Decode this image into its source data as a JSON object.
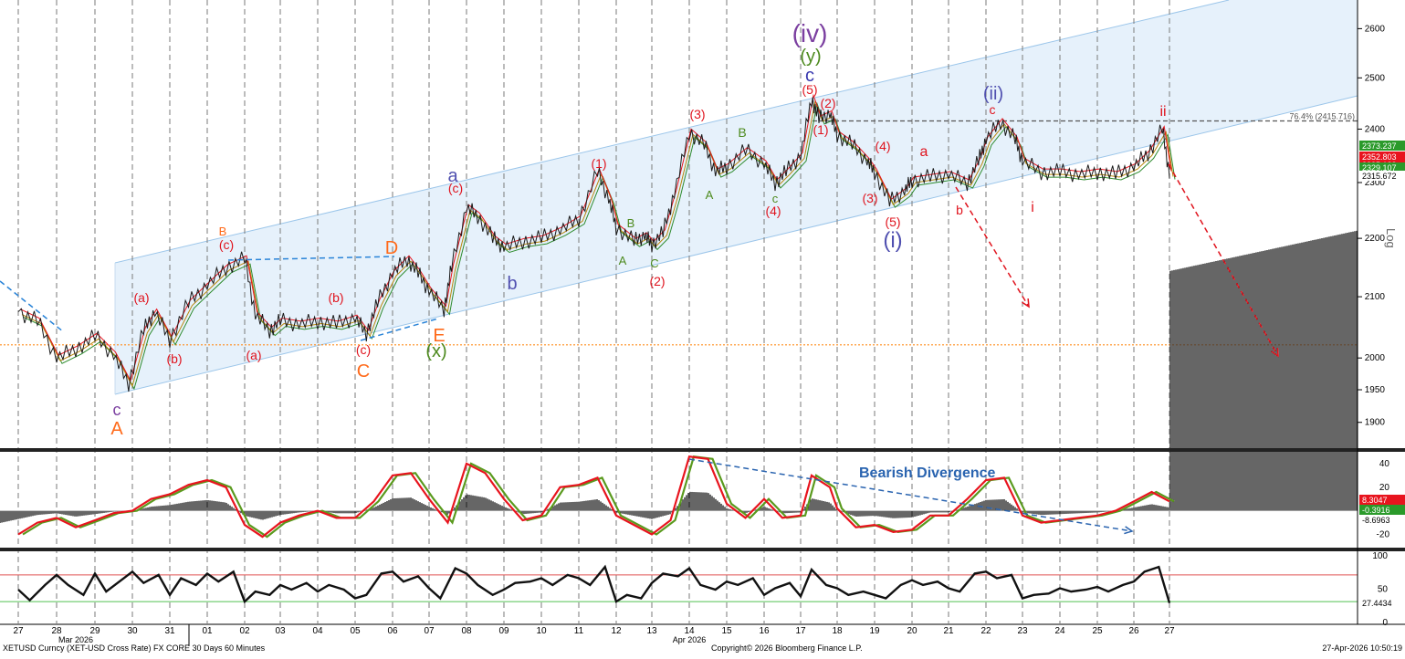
{
  "chart_data": {
    "type": "line",
    "title": "",
    "footer": {
      "left": "XETUSD Curncy (XET-USD Cross Rate) FX CORE 30 Days 60 Minutes",
      "center": "Copyright© 2026 Bloomberg Finance L.P.",
      "right": "27-Apr-2026 10:50:19"
    },
    "scale_label": "Log",
    "x_ticks": [
      "27",
      "28",
      "29",
      "30",
      "31",
      "01",
      "02",
      "03",
      "04",
      "05",
      "06",
      "07",
      "08",
      "09",
      "10",
      "11",
      "12",
      "13",
      "14",
      "15",
      "16",
      "17",
      "18",
      "19",
      "20",
      "21",
      "22",
      "23",
      "24",
      "25",
      "26",
      "27"
    ],
    "month_labels": [
      {
        "text": "Mar 2026",
        "at": "28"
      },
      {
        "text": "Apr 2026",
        "at": "14"
      }
    ],
    "price_panel": {
      "y_ticks": [
        1900,
        1950,
        2000,
        2100,
        2200,
        2300,
        2400,
        2500,
        2600
      ],
      "ylim": [
        1860,
        2660
      ],
      "log_scale": true,
      "price_path": [
        [
          "27",
          2075
        ],
        [
          "27.5",
          2060
        ],
        [
          "28",
          2000
        ],
        [
          "28.5",
          2015
        ],
        [
          "29",
          2035
        ],
        [
          "29.5",
          2005
        ],
        [
          "29.9",
          1960
        ],
        [
          "30.3",
          2045
        ],
        [
          "30.6",
          2075
        ],
        [
          "31",
          2030
        ],
        [
          "31.5",
          2090
        ],
        [
          "01",
          2120
        ],
        [
          "01.5",
          2150
        ],
        [
          "02",
          2165
        ],
        [
          "02.3",
          2070
        ],
        [
          "02.7",
          2045
        ],
        [
          "03",
          2060
        ],
        [
          "03.5",
          2055
        ],
        [
          "04",
          2060
        ],
        [
          "04.5",
          2055
        ],
        [
          "05",
          2065
        ],
        [
          "05.3",
          2040
        ],
        [
          "05.6",
          2090
        ],
        [
          "06",
          2140
        ],
        [
          "06.4",
          2165
        ],
        [
          "06.7",
          2140
        ],
        [
          "07",
          2110
        ],
        [
          "07.4",
          2080
        ],
        [
          "07.6",
          2150
        ],
        [
          "08",
          2255
        ],
        [
          "08.3",
          2240
        ],
        [
          "08.7",
          2200
        ],
        [
          "09",
          2185
        ],
        [
          "09.5",
          2195
        ],
        [
          "10",
          2200
        ],
        [
          "10.5",
          2215
        ],
        [
          "11",
          2235
        ],
        [
          "11.5",
          2320
        ],
        [
          "11.8",
          2270
        ],
        [
          "12",
          2220
        ],
        [
          "12.5",
          2195
        ],
        [
          "12.8",
          2205
        ],
        [
          "13",
          2190
        ],
        [
          "13.3",
          2210
        ],
        [
          "13.6",
          2280
        ],
        [
          "14",
          2395
        ],
        [
          "14.4",
          2370
        ],
        [
          "14.7",
          2320
        ],
        [
          "15",
          2330
        ],
        [
          "15.5",
          2360
        ],
        [
          "16",
          2335
        ],
        [
          "16.3",
          2300
        ],
        [
          "16.6",
          2320
        ],
        [
          "17",
          2350
        ],
        [
          "17.3",
          2460
        ],
        [
          "17.5",
          2420
        ],
        [
          "17.8",
          2430
        ],
        [
          "18",
          2390
        ],
        [
          "18.4",
          2370
        ],
        [
          "18.8",
          2340
        ],
        [
          "19",
          2320
        ],
        [
          "19.4",
          2265
        ],
        [
          "19.8",
          2285
        ],
        [
          "20",
          2305
        ],
        [
          "20.5",
          2310
        ],
        [
          "21",
          2315
        ],
        [
          "21.5",
          2300
        ],
        [
          "21.8",
          2340
        ],
        [
          "22",
          2380
        ],
        [
          "22.4",
          2415
        ],
        [
          "22.8",
          2380
        ],
        [
          "23",
          2340
        ],
        [
          "23.5",
          2320
        ],
        [
          "24",
          2320
        ],
        [
          "24.5",
          2315
        ],
        [
          "25",
          2320
        ],
        [
          "25.5",
          2315
        ],
        [
          "26",
          2330
        ],
        [
          "26.4",
          2355
        ],
        [
          "26.8",
          2400
        ],
        [
          "27",
          2316
        ]
      ],
      "series": [
        {
          "name": "Price",
          "last": "2315.672",
          "color": "#1a1a1a"
        },
        {
          "name": "MA fast",
          "last": "2352.803",
          "color": "#e8141e"
        },
        {
          "name": "MA slow",
          "last": "2373.237",
          "color": "#2e8b2e"
        },
        {
          "name": "MA",
          "last": "2335.183",
          "color": "#b8860b"
        },
        {
          "name": "MA",
          "last": "2329.107",
          "color": "#3aa83a"
        }
      ],
      "horizontal_levels": [
        {
          "value": 2021,
          "style": "dotted",
          "color": "#ff8c1a"
        },
        {
          "value": 2415.716,
          "style": "dashed",
          "color": "#555555",
          "label": "76.4% (2415.716)"
        }
      ],
      "wave_labels": [
        {
          "text": "(iv)",
          "color": "#7b3fa0"
        },
        {
          "text": "(y)",
          "color": "#4d8a1e"
        },
        {
          "text": "c",
          "color": "#3b3bb0"
        },
        {
          "text": "(5)",
          "color": "#e0141e"
        },
        {
          "text": "(2)",
          "color": "#e0141e"
        },
        {
          "text": "(1)",
          "color": "#e0141e"
        },
        {
          "text": "(3)",
          "color": "#e0141e"
        },
        {
          "text": "B",
          "color": "#4d8a1e"
        },
        {
          "text": "A",
          "color": "#4d8a1e"
        },
        {
          "text": "c",
          "color": "#4d8a1e"
        },
        {
          "text": "(4)",
          "color": "#e0141e"
        },
        {
          "text": "(4)",
          "color": "#e0141e"
        },
        {
          "text": "(3)",
          "color": "#e0141e"
        },
        {
          "text": "a",
          "color": "#e0141e"
        },
        {
          "text": "(5)",
          "color": "#e0141e"
        },
        {
          "text": "(i)",
          "color": "#5050b0"
        },
        {
          "text": "b",
          "color": "#e0141e"
        },
        {
          "text": "(ii)",
          "color": "#5050b0"
        },
        {
          "text": "c",
          "color": "#e0141e"
        },
        {
          "text": "i",
          "color": "#e0141e"
        },
        {
          "text": "ii",
          "color": "#e0141e"
        },
        {
          "text": "a",
          "color": "#5050b0"
        },
        {
          "text": "(c)",
          "color": "#e0141e"
        },
        {
          "text": "(1)",
          "color": "#e0141e"
        },
        {
          "text": "B",
          "color": "#4d8a1e"
        },
        {
          "text": "A",
          "color": "#4d8a1e"
        },
        {
          "text": "C",
          "color": "#4d8a1e"
        },
        {
          "text": "(2)",
          "color": "#e0141e"
        },
        {
          "text": "b",
          "color": "#5050b0"
        },
        {
          "text": "B",
          "color": "#ff6a1a"
        },
        {
          "text": "(c)",
          "color": "#e0141e"
        },
        {
          "text": "(a)",
          "color": "#e0141e"
        },
        {
          "text": "(b)",
          "color": "#e0141e"
        },
        {
          "text": "(a)",
          "color": "#e0141e"
        },
        {
          "text": "(b)",
          "color": "#e0141e"
        },
        {
          "text": "(c)",
          "color": "#e0141e"
        },
        {
          "text": "C",
          "color": "#ff6a1a"
        },
        {
          "text": "D",
          "color": "#ff6a1a"
        },
        {
          "text": "E",
          "color": "#ff6a1a"
        },
        {
          "text": "(x)",
          "color": "#4d8a1e"
        },
        {
          "text": "c",
          "color": "#7b3fa0"
        },
        {
          "text": "A",
          "color": "#ff6a1a"
        }
      ]
    },
    "macd_panel": {
      "y_ticks": [
        40,
        20,
        -20
      ],
      "ylim": [
        -32,
        50
      ],
      "values": [
        {
          "label": "8.3047",
          "color": "#e8141e"
        },
        {
          "label": "-0.3916",
          "color": "#2e8b2e"
        },
        {
          "label": "-8.6963",
          "color": "#ffffff"
        }
      ],
      "annotation": "Bearish Divergence",
      "osc_path": [
        [
          "27",
          -20
        ],
        [
          "27.5",
          -10
        ],
        [
          "28",
          -6
        ],
        [
          "28.5",
          -14
        ],
        [
          "29",
          -8
        ],
        [
          "29.5",
          -2
        ],
        [
          "30",
          0
        ],
        [
          "30.5",
          10
        ],
        [
          "31",
          14
        ],
        [
          "31.5",
          22
        ],
        [
          "01",
          26
        ],
        [
          "01.5",
          20
        ],
        [
          "02",
          -12
        ],
        [
          "02.5",
          -22
        ],
        [
          "03",
          -10
        ],
        [
          "03.5",
          -4
        ],
        [
          "04",
          0
        ],
        [
          "04.5",
          -6
        ],
        [
          "05",
          -6
        ],
        [
          "05.5",
          8
        ],
        [
          "06",
          30
        ],
        [
          "06.5",
          32
        ],
        [
          "07",
          10
        ],
        [
          "07.5",
          -10
        ],
        [
          "08",
          40
        ],
        [
          "08.5",
          32
        ],
        [
          "09",
          10
        ],
        [
          "09.5",
          -8
        ],
        [
          "10",
          -4
        ],
        [
          "10.5",
          20
        ],
        [
          "11",
          22
        ],
        [
          "11.5",
          28
        ],
        [
          "12",
          -4
        ],
        [
          "12.5",
          -12
        ],
        [
          "13",
          -20
        ],
        [
          "13.5",
          -8
        ],
        [
          "14",
          46
        ],
        [
          "14.5",
          44
        ],
        [
          "15",
          6
        ],
        [
          "15.5",
          -6
        ],
        [
          "16",
          10
        ],
        [
          "16.5",
          -6
        ],
        [
          "17",
          -4
        ],
        [
          "17.3",
          30
        ],
        [
          "17.8",
          20
        ],
        [
          "18",
          2
        ],
        [
          "18.5",
          -14
        ],
        [
          "19",
          -12
        ],
        [
          "19.5",
          -18
        ],
        [
          "20",
          -16
        ],
        [
          "20.5",
          -4
        ],
        [
          "21",
          -4
        ],
        [
          "21.5",
          10
        ],
        [
          "22",
          26
        ],
        [
          "22.5",
          28
        ],
        [
          "23",
          -4
        ],
        [
          "23.5",
          -10
        ],
        [
          "24",
          -8
        ],
        [
          "24.5",
          -6
        ],
        [
          "25",
          -4
        ],
        [
          "25.5",
          0
        ],
        [
          "26",
          8
        ],
        [
          "26.5",
          16
        ],
        [
          "27",
          8
        ]
      ]
    },
    "rsi_panel": {
      "y_ticks": [
        100,
        50,
        0
      ],
      "ylim": [
        0,
        100
      ],
      "levels": [
        70,
        30
      ],
      "last": "27.4434",
      "rsi_path": [
        [
          "27",
          48
        ],
        [
          "27.3",
          32
        ],
        [
          "27.7",
          55
        ],
        [
          "28",
          70
        ],
        [
          "28.3",
          55
        ],
        [
          "28.7",
          40
        ],
        [
          "29",
          72
        ],
        [
          "29.3",
          45
        ],
        [
          "29.7",
          62
        ],
        [
          "30",
          75
        ],
        [
          "30.3",
          58
        ],
        [
          "30.7",
          70
        ],
        [
          "31",
          40
        ],
        [
          "31.3",
          65
        ],
        [
          "31.7",
          55
        ],
        [
          "01",
          72
        ],
        [
          "01.3",
          60
        ],
        [
          "01.7",
          75
        ],
        [
          "02",
          30
        ],
        [
          "02.3",
          45
        ],
        [
          "02.7",
          40
        ],
        [
          "03",
          55
        ],
        [
          "03.3",
          48
        ],
        [
          "03.7",
          58
        ],
        [
          "04",
          45
        ],
        [
          "04.3",
          55
        ],
        [
          "04.7",
          48
        ],
        [
          "05",
          35
        ],
        [
          "05.3",
          40
        ],
        [
          "05.7",
          72
        ],
        [
          "06",
          75
        ],
        [
          "06.3",
          60
        ],
        [
          "06.7",
          68
        ],
        [
          "07",
          50
        ],
        [
          "07.3",
          35
        ],
        [
          "07.7",
          80
        ],
        [
          "08",
          72
        ],
        [
          "08.3",
          55
        ],
        [
          "08.7",
          40
        ],
        [
          "09",
          48
        ],
        [
          "09.3",
          58
        ],
        [
          "09.7",
          60
        ],
        [
          "10",
          65
        ],
        [
          "10.3",
          55
        ],
        [
          "10.7",
          70
        ],
        [
          "11",
          65
        ],
        [
          "11.3",
          55
        ],
        [
          "11.7",
          82
        ],
        [
          "12",
          30
        ],
        [
          "12.3",
          40
        ],
        [
          "12.7",
          35
        ],
        [
          "13",
          58
        ],
        [
          "13.3",
          72
        ],
        [
          "13.7",
          68
        ],
        [
          "14",
          80
        ],
        [
          "14.3",
          55
        ],
        [
          "14.7",
          48
        ],
        [
          "15",
          60
        ],
        [
          "15.3",
          55
        ],
        [
          "15.7",
          65
        ],
        [
          "16",
          40
        ],
        [
          "16.3",
          50
        ],
        [
          "16.7",
          58
        ],
        [
          "17",
          38
        ],
        [
          "17.3",
          78
        ],
        [
          "17.7",
          55
        ],
        [
          "18",
          50
        ],
        [
          "18.3",
          40
        ],
        [
          "18.7",
          45
        ],
        [
          "19",
          40
        ],
        [
          "19.3",
          35
        ],
        [
          "19.7",
          55
        ],
        [
          "20",
          62
        ],
        [
          "20.3",
          55
        ],
        [
          "20.7",
          60
        ],
        [
          "21",
          50
        ],
        [
          "21.3",
          45
        ],
        [
          "21.7",
          72
        ],
        [
          "22",
          75
        ],
        [
          "22.3",
          65
        ],
        [
          "22.7",
          70
        ],
        [
          "23",
          35
        ],
        [
          "23.3",
          40
        ],
        [
          "23.7",
          42
        ],
        [
          "24",
          50
        ],
        [
          "24.3",
          45
        ],
        [
          "24.7",
          48
        ],
        [
          "25",
          52
        ],
        [
          "25.3",
          45
        ],
        [
          "25.7",
          55
        ],
        [
          "26",
          60
        ],
        [
          "26.3",
          75
        ],
        [
          "26.7",
          82
        ],
        [
          "27",
          28
        ]
      ]
    }
  }
}
